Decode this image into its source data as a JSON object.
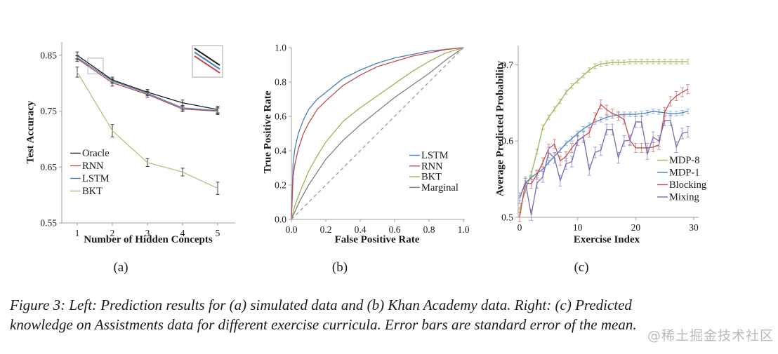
{
  "figure": {
    "subplot_labels": [
      "(a)",
      "(b)",
      "(c)"
    ],
    "caption_lines": [
      "Figure 3: Left: Prediction results for (a) simulated data and (b) Khan Academy data. Right: (c) Predicted",
      "knowledge on Assistments data for different exercise curricula. Error bars are standard error of the mean."
    ]
  },
  "watermark": {
    "text": "@稀土掘金技术社区",
    "color": "#b9b9b9"
  },
  "colors": {
    "axis": "#a0a0a0",
    "blue": "#4a7ebb",
    "red": "#bf4d4d",
    "olive_pale": "#b9bc82",
    "olive_green": "#9cb356",
    "gray": "#7f7f7f",
    "purple": "#7b6cb2",
    "black": "#1f1f1f"
  },
  "chart_data": [
    {
      "type": "line",
      "title": "",
      "xlabel": "Number of Hidden Concepts",
      "ylabel": "Test Accuracy",
      "xlim": [
        0.5,
        5.5
      ],
      "ylim": [
        0.55,
        0.8725
      ],
      "xticks": [
        1,
        2,
        3,
        4,
        5
      ],
      "xtick_labels": [
        "1",
        "2",
        "3",
        "4",
        "5"
      ],
      "yticks": [
        0.55,
        0.65,
        0.75,
        0.85
      ],
      "ytick_labels": [
        "0.55",
        "0.65",
        "0.75",
        "0.85"
      ],
      "legend": true,
      "legend_position": "lower-left",
      "grid": false,
      "x": [
        1,
        2,
        3,
        4,
        5
      ],
      "zoom_box": {
        "x": [
          1.3,
          1.74
        ],
        "y": [
          0.817,
          0.845
        ]
      },
      "series": [
        {
          "name": "Oracle",
          "color": "#1f1f1f",
          "y": [
            0.85,
            0.806,
            0.784,
            0.765,
            0.753
          ],
          "err": [
            0.006,
            0.005,
            0.005,
            0.005,
            0.006
          ],
          "err_color": "#3d3d3d"
        },
        {
          "name": "RNN",
          "color": "#bf4d4d",
          "y": [
            0.844,
            0.801,
            0.78,
            0.754,
            0.75
          ],
          "err": [
            0.005,
            0.006,
            0.005,
            0.005,
            0.006
          ],
          "err_color": "#3d3d3d"
        },
        {
          "name": "LSTM",
          "color": "#4a7ebb",
          "y": [
            0.846,
            0.804,
            0.782,
            0.756,
            0.751
          ],
          "err": [
            0.004,
            0.004,
            0.004,
            0.004,
            0.005
          ],
          "err_color": "#3d3d3d"
        },
        {
          "name": "BKT",
          "color": "#b9bc82",
          "y": [
            0.82,
            0.715,
            0.658,
            0.641,
            0.612
          ],
          "err": [
            0.009,
            0.011,
            0.007,
            0.007,
            0.011
          ],
          "err_color": "#3d3d3d"
        }
      ]
    },
    {
      "type": "line",
      "title": "",
      "xlabel": "False Positive Rate",
      "ylabel": "True Positive Rate",
      "xlim": [
        0,
        1
      ],
      "ylim": [
        0,
        1
      ],
      "xticks": [
        0,
        0.2,
        0.4,
        0.6,
        0.8,
        1.0
      ],
      "xtick_labels": [
        "0.0",
        "0.2",
        "0.4",
        "0.6",
        "0.8",
        "1.0"
      ],
      "yticks": [
        0,
        0.2,
        0.4,
        0.6,
        0.8,
        1.0
      ],
      "ytick_labels": [
        "0.0",
        "0.2",
        "0.4",
        "0.6",
        "0.8",
        "1.0"
      ],
      "legend": true,
      "legend_position": "lower-right",
      "grid": false,
      "series": [
        {
          "name": "LSTM",
          "color": "#4a7ebb",
          "x": [
            0,
            0.01,
            0.02,
            0.04,
            0.07,
            0.1,
            0.15,
            0.2,
            0.3,
            0.4,
            0.5,
            0.6,
            0.7,
            0.8,
            0.9,
            1
          ],
          "y": [
            0,
            0.33,
            0.41,
            0.5,
            0.58,
            0.64,
            0.7,
            0.74,
            0.82,
            0.87,
            0.91,
            0.94,
            0.96,
            0.98,
            0.99,
            1
          ]
        },
        {
          "name": "RNN",
          "color": "#bf4d4d",
          "x": [
            0,
            0.01,
            0.02,
            0.04,
            0.07,
            0.1,
            0.15,
            0.2,
            0.3,
            0.4,
            0.5,
            0.6,
            0.7,
            0.8,
            0.9,
            1
          ],
          "y": [
            0,
            0.25,
            0.32,
            0.41,
            0.5,
            0.56,
            0.64,
            0.69,
            0.78,
            0.84,
            0.89,
            0.92,
            0.95,
            0.97,
            0.99,
            1
          ]
        },
        {
          "name": "BKT",
          "color": "#9cb356",
          "x": [
            0,
            0.02,
            0.05,
            0.1,
            0.15,
            0.2,
            0.3,
            0.4,
            0.5,
            0.6,
            0.7,
            0.8,
            0.9,
            1
          ],
          "y": [
            0,
            0.08,
            0.16,
            0.28,
            0.37,
            0.45,
            0.57,
            0.65,
            0.72,
            0.79,
            0.86,
            0.92,
            0.97,
            1
          ]
        },
        {
          "name": "Marginal",
          "color": "#7f7f7f",
          "x": [
            0,
            0.05,
            0.1,
            0.2,
            0.3,
            0.4,
            0.5,
            0.6,
            0.7,
            0.8,
            0.9,
            1
          ],
          "y": [
            0,
            0.11,
            0.2,
            0.35,
            0.46,
            0.55,
            0.63,
            0.71,
            0.78,
            0.85,
            0.93,
            1
          ]
        },
        {
          "name": "chance-diagonal",
          "color": "#9a9a9a",
          "dash": true,
          "no_legend": true,
          "x": [
            0,
            1
          ],
          "y": [
            0,
            1
          ]
        }
      ]
    },
    {
      "type": "line",
      "title": "",
      "xlabel": "Exercise Index",
      "ylabel": "Average Predicted Probability",
      "xlim": [
        0,
        30
      ],
      "ylim": [
        0.5,
        0.715
      ],
      "xticks": [
        0,
        10,
        20,
        30
      ],
      "xtick_labels": [
        "0",
        "10",
        "20",
        "30"
      ],
      "yticks": [
        0.5,
        0.6,
        0.7
      ],
      "ytick_labels": [
        "0.5",
        "0.6",
        "0.7"
      ],
      "legend": true,
      "legend_position": "lower-right",
      "grid": false,
      "x": [
        0,
        1,
        2,
        3,
        4,
        5,
        6,
        7,
        8,
        9,
        10,
        11,
        12,
        13,
        14,
        15,
        16,
        17,
        18,
        19,
        20,
        21,
        22,
        23,
        24,
        25,
        26,
        27,
        28,
        29
      ],
      "series": [
        {
          "name": "MDP-8",
          "color": "#9cb356",
          "err": 0.003,
          "err_color": "#b9c98b",
          "y": [
            0.51,
            0.535,
            0.557,
            0.586,
            0.618,
            0.631,
            0.642,
            0.652,
            0.664,
            0.672,
            0.679,
            0.686,
            0.693,
            0.698,
            0.701,
            0.702,
            0.703,
            0.703,
            0.703,
            0.704,
            0.704,
            0.704,
            0.704,
            0.704,
            0.704,
            0.704,
            0.704,
            0.704,
            0.704,
            0.704
          ]
        },
        {
          "name": "MDP-1",
          "color": "#4a7ebb",
          "err": 0.003,
          "err_color": "#9ab8dc",
          "y": [
            0.525,
            0.545,
            0.552,
            0.558,
            0.563,
            0.572,
            0.58,
            0.588,
            0.597,
            0.603,
            0.61,
            0.616,
            0.621,
            0.625,
            0.628,
            0.631,
            0.633,
            0.634,
            0.635,
            0.635,
            0.635,
            0.636,
            0.637,
            0.639,
            0.638,
            0.637,
            0.636,
            0.636,
            0.637,
            0.639
          ]
        },
        {
          "name": "Blocking",
          "color": "#bf4d4d",
          "err": 0.006,
          "err_color": "#d98f8f",
          "y": [
            0.5,
            0.545,
            0.544,
            0.556,
            0.572,
            0.59,
            0.596,
            0.574,
            0.58,
            0.591,
            0.6,
            0.606,
            0.611,
            0.631,
            0.648,
            0.641,
            0.636,
            0.633,
            0.628,
            0.601,
            0.591,
            0.591,
            0.591,
            0.592,
            0.595,
            0.638,
            0.652,
            0.659,
            0.664,
            0.668
          ]
        },
        {
          "name": "Mixing",
          "color": "#7b6cb2",
          "err": 0.007,
          "err_color": "#a79fd0",
          "y": [
            0.525,
            0.546,
            0.503,
            0.545,
            0.553,
            0.585,
            0.578,
            0.548,
            0.57,
            0.573,
            0.601,
            0.605,
            0.562,
            0.585,
            0.588,
            0.615,
            0.615,
            0.578,
            0.6,
            0.601,
            0.625,
            0.625,
            0.583,
            0.605,
            0.6,
            0.627,
            0.627,
            0.592,
            0.61,
            0.612
          ]
        }
      ]
    }
  ]
}
